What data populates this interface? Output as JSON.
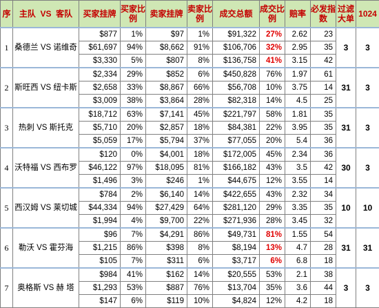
{
  "headers": {
    "seq": "序",
    "teams": "主队  VS  客队",
    "buy_amount": "买家挂牌",
    "buy_ratio": "买家比例",
    "sell_amount": "卖家挂牌",
    "sell_ratio": "卖家比例",
    "total": "成交总额",
    "deal_ratio": "成交比例",
    "odds": "赔率",
    "index": "必发指数",
    "filter": "过滤大单",
    "n1024": "1024"
  },
  "matches": [
    {
      "seq": "1",
      "match": "桑德兰 VS 诺维奇",
      "filter": "3",
      "n1024": "3",
      "rows": [
        {
          "buy": "$877",
          "buy_pct": "1%",
          "sell": "$97",
          "sell_pct": "1%",
          "total": "$91,322",
          "deal": "27%",
          "odds": "2.62",
          "index": "23",
          "hl": true
        },
        {
          "buy": "$61,697",
          "buy_pct": "94%",
          "sell": "$8,662",
          "sell_pct": "91%",
          "total": "$106,706",
          "deal": "32%",
          "odds": "2.95",
          "index": "35",
          "hl": true
        },
        {
          "buy": "$3,330",
          "buy_pct": "5%",
          "sell": "$807",
          "sell_pct": "8%",
          "total": "$136,758",
          "deal": "41%",
          "odds": "3.15",
          "index": "42",
          "hl": true
        }
      ]
    },
    {
      "seq": "2",
      "match": "斯旺西 VS 纽卡斯",
      "filter": "31",
      "n1024": "3",
      "rows": [
        {
          "buy": "$2,334",
          "buy_pct": "29%",
          "sell": "$852",
          "sell_pct": "6%",
          "total": "$450,828",
          "deal": "76%",
          "odds": "1.97",
          "index": "61",
          "hl": false
        },
        {
          "buy": "$2,658",
          "buy_pct": "33%",
          "sell": "$8,867",
          "sell_pct": "66%",
          "total": "$56,708",
          "deal": "10%",
          "odds": "3.75",
          "index": "14",
          "hl": false
        },
        {
          "buy": "$3,009",
          "buy_pct": "38%",
          "sell": "$3,864",
          "sell_pct": "28%",
          "total": "$82,318",
          "deal": "14%",
          "odds": "4.5",
          "index": "25",
          "hl": false
        }
      ]
    },
    {
      "seq": "3",
      "match": "热刺 VS 斯托克",
      "filter": "31",
      "n1024": "3",
      "rows": [
        {
          "buy": "$18,712",
          "buy_pct": "63%",
          "sell": "$7,141",
          "sell_pct": "45%",
          "total": "$221,797",
          "deal": "58%",
          "odds": "1.81",
          "index": "35",
          "hl": false
        },
        {
          "buy": "$5,710",
          "buy_pct": "20%",
          "sell": "$2,857",
          "sell_pct": "18%",
          "total": "$84,381",
          "deal": "22%",
          "odds": "3.95",
          "index": "35",
          "hl": false
        },
        {
          "buy": "$5,059",
          "buy_pct": "17%",
          "sell": "$5,794",
          "sell_pct": "37%",
          "total": "$77,055",
          "deal": "20%",
          "odds": "5.4",
          "index": "36",
          "hl": false
        }
      ]
    },
    {
      "seq": "4",
      "match": "沃特福 VS 西布罗",
      "filter": "30",
      "n1024": "3",
      "rows": [
        {
          "buy": "$120",
          "buy_pct": "0%",
          "sell": "$4,001",
          "sell_pct": "18%",
          "total": "$172,005",
          "deal": "45%",
          "odds": "2.34",
          "index": "36",
          "hl": false
        },
        {
          "buy": "$46,122",
          "buy_pct": "97%",
          "sell": "$18,095",
          "sell_pct": "81%",
          "total": "$166,182",
          "deal": "43%",
          "odds": "3.5",
          "index": "42",
          "hl": false
        },
        {
          "buy": "$1,496",
          "buy_pct": "3%",
          "sell": "$246",
          "sell_pct": "1%",
          "total": "$44,675",
          "deal": "12%",
          "odds": "3.55",
          "index": "14",
          "hl": false
        }
      ]
    },
    {
      "seq": "5",
      "match": "西汉姆 VS 莱切城",
      "filter": "10",
      "n1024": "10",
      "rows": [
        {
          "buy": "$784",
          "buy_pct": "2%",
          "sell": "$6,140",
          "sell_pct": "14%",
          "total": "$422,655",
          "deal": "43%",
          "odds": "2.32",
          "index": "34",
          "hl": false
        },
        {
          "buy": "$44,334",
          "buy_pct": "94%",
          "sell": "$27,429",
          "sell_pct": "64%",
          "total": "$281,120",
          "deal": "29%",
          "odds": "3.35",
          "index": "35",
          "hl": false
        },
        {
          "buy": "$1,994",
          "buy_pct": "4%",
          "sell": "$9,700",
          "sell_pct": "22%",
          "total": "$271,936",
          "deal": "28%",
          "odds": "3.45",
          "index": "32",
          "hl": false
        }
      ]
    },
    {
      "seq": "6",
      "match": "勒沃 VS 霍芬海",
      "filter": "31",
      "n1024": "31",
      "rows": [
        {
          "buy": "$96",
          "buy_pct": "7%",
          "sell": "$4,291",
          "sell_pct": "86%",
          "total": "$49,731",
          "deal": "81%",
          "odds": "1.55",
          "index": "54",
          "hl": true
        },
        {
          "buy": "$1,215",
          "buy_pct": "86%",
          "sell": "$398",
          "sell_pct": "8%",
          "total": "$8,194",
          "deal": "13%",
          "odds": "4.7",
          "index": "28",
          "hl": true
        },
        {
          "buy": "$105",
          "buy_pct": "7%",
          "sell": "$311",
          "sell_pct": "6%",
          "total": "$3,717",
          "deal": "6%",
          "odds": "6.8",
          "index": "18",
          "hl": true
        }
      ]
    },
    {
      "seq": "7",
      "match": "奥格斯 VS 赫 塔",
      "filter": "3",
      "n1024": "3",
      "rows": [
        {
          "buy": "$984",
          "buy_pct": "41%",
          "sell": "$162",
          "sell_pct": "14%",
          "total": "$20,555",
          "deal": "53%",
          "odds": "2.1",
          "index": "38",
          "hl": false
        },
        {
          "buy": "$1,293",
          "buy_pct": "53%",
          "sell": "$887",
          "sell_pct": "76%",
          "total": "$13,704",
          "deal": "35%",
          "odds": "3.6",
          "index": "44",
          "hl": false
        },
        {
          "buy": "$147",
          "buy_pct": "6%",
          "sell": "$119",
          "sell_pct": "10%",
          "total": "$4,824",
          "deal": "12%",
          "odds": "4.2",
          "index": "18",
          "hl": false
        }
      ]
    }
  ]
}
